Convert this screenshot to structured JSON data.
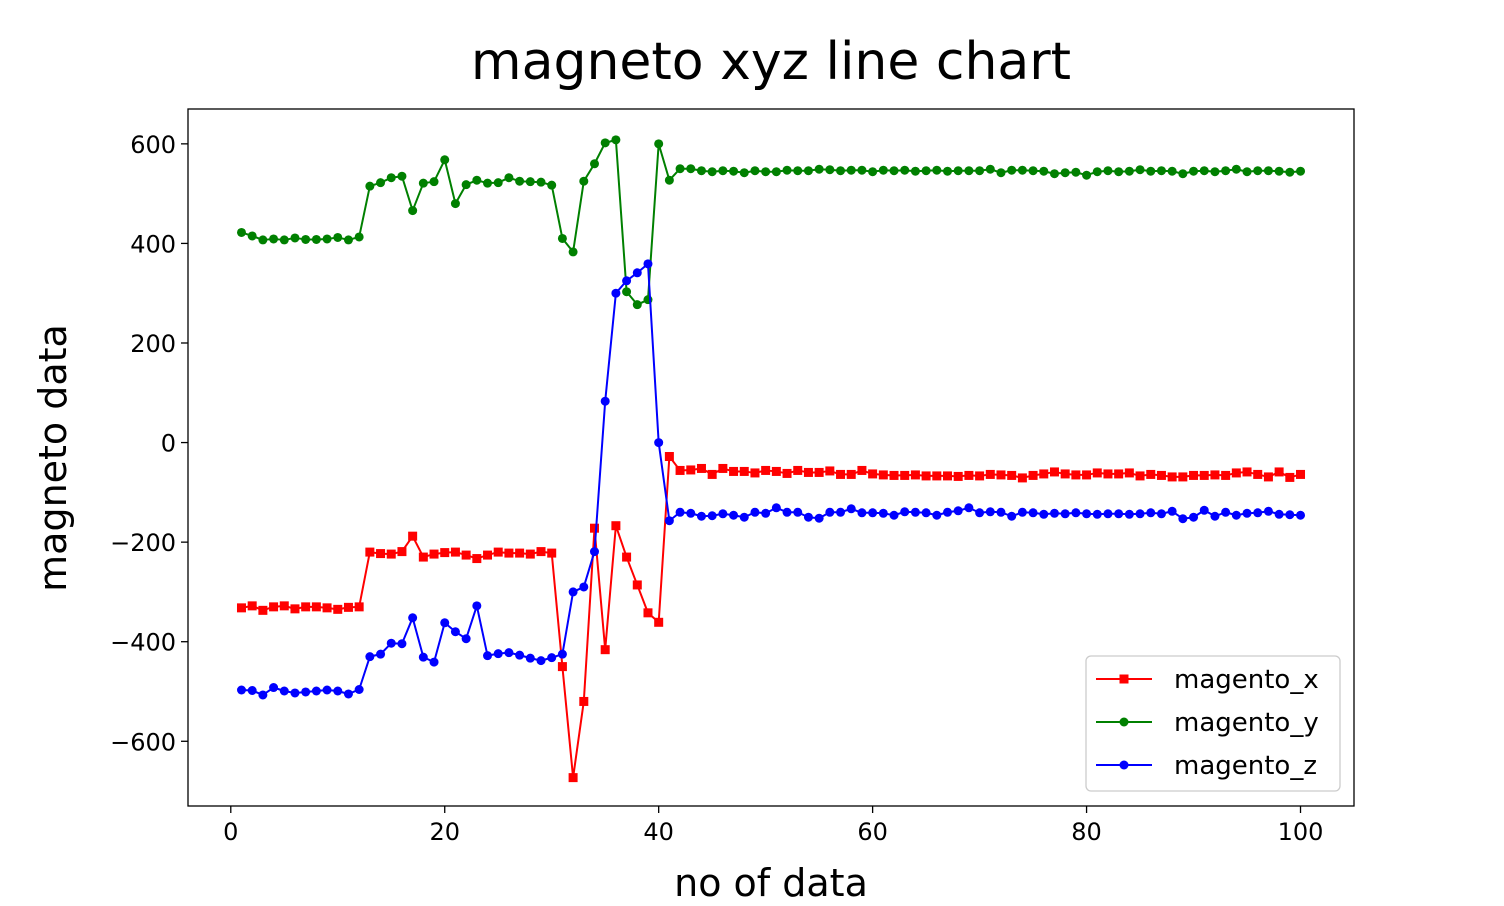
{
  "chart_data": {
    "type": "line",
    "title": "magneto xyz line chart",
    "xlabel": "no of data",
    "ylabel": "magneto data",
    "xlim": [
      -4,
      105
    ],
    "ylim": [
      -730,
      670
    ],
    "xticks": [
      0,
      20,
      40,
      60,
      80,
      100
    ],
    "xtick_labels": [
      "0",
      "20",
      "40",
      "60",
      "80",
      "100"
    ],
    "yticks": [
      -600,
      -400,
      -200,
      0,
      200,
      400,
      600
    ],
    "ytick_labels": [
      "−600",
      "−400",
      "−200",
      "0",
      "200",
      "400",
      "600"
    ],
    "grid": false,
    "legend_position": "lower-right",
    "x": [
      1,
      2,
      3,
      4,
      5,
      6,
      7,
      8,
      9,
      10,
      11,
      12,
      13,
      14,
      15,
      16,
      17,
      18,
      19,
      20,
      21,
      22,
      23,
      24,
      25,
      26,
      27,
      28,
      29,
      30,
      31,
      32,
      33,
      34,
      35,
      36,
      37,
      38,
      39,
      40,
      41,
      42,
      43,
      44,
      45,
      46,
      47,
      48,
      49,
      50,
      51,
      52,
      53,
      54,
      55,
      56,
      57,
      58,
      59,
      60,
      61,
      62,
      63,
      64,
      65,
      66,
      67,
      68,
      69,
      70,
      71,
      72,
      73,
      74,
      75,
      76,
      77,
      78,
      79,
      80,
      81,
      82,
      83,
      84,
      85,
      86,
      87,
      88,
      89,
      90,
      91,
      92,
      93,
      94,
      95,
      96,
      97,
      98,
      99,
      100
    ],
    "series": [
      {
        "name": "magento_x",
        "color": "#ff0000",
        "marker": "square",
        "values": [
          -332,
          -328,
          -337,
          -330,
          -328,
          -334,
          -330,
          -330,
          -332,
          -335,
          -331,
          -330,
          -220,
          -223,
          -224,
          -219,
          -188,
          -230,
          -224,
          -221,
          -220,
          -226,
          -233,
          -226,
          -220,
          -222,
          -222,
          -224,
          -219,
          -222,
          -450,
          -673,
          -520,
          -172,
          -416,
          -167,
          -230,
          -286,
          -342,
          -361,
          -28,
          -56,
          -55,
          -52,
          -64,
          -52,
          -58,
          -58,
          -61,
          -56,
          -58,
          -62,
          -56,
          -60,
          -60,
          -57,
          -64,
          -64,
          -56,
          -63,
          -65,
          -66,
          -66,
          -65,
          -67,
          -67,
          -67,
          -68,
          -66,
          -67,
          -64,
          -65,
          -66,
          -71,
          -66,
          -63,
          -59,
          -63,
          -65,
          -65,
          -61,
          -63,
          -63,
          -61,
          -67,
          -64,
          -66,
          -69,
          -69,
          -66,
          -66,
          -65,
          -66,
          -61,
          -59,
          -64,
          -69,
          -59,
          -70,
          -64
        ]
      },
      {
        "name": "magento_y",
        "color": "#008000",
        "marker": "circle",
        "values": [
          422,
          415,
          407,
          409,
          407,
          411,
          408,
          408,
          409,
          412,
          407,
          413,
          515,
          522,
          532,
          535,
          466,
          521,
          524,
          568,
          480,
          518,
          527,
          521,
          522,
          532,
          525,
          524,
          523,
          517,
          410,
          383,
          525,
          560,
          602,
          608,
          303,
          277,
          287,
          600,
          527,
          550,
          550,
          546,
          544,
          546,
          545,
          542,
          546,
          544,
          544,
          547,
          546,
          546,
          549,
          548,
          546,
          547,
          547,
          544,
          547,
          546,
          547,
          545,
          546,
          547,
          545,
          546,
          546,
          546,
          549,
          542,
          547,
          547,
          546,
          545,
          540,
          542,
          543,
          537,
          544,
          546,
          544,
          545,
          548,
          545,
          546,
          545,
          540,
          545,
          546,
          544,
          546,
          549,
          544,
          546,
          546,
          545,
          543,
          545
        ]
      },
      {
        "name": "magento_z",
        "color": "#0000ff",
        "marker": "circle",
        "values": [
          -497,
          -498,
          -507,
          -492,
          -499,
          -503,
          -501,
          -499,
          -497,
          -499,
          -505,
          -496,
          -430,
          -425,
          -403,
          -404,
          -352,
          -431,
          -441,
          -362,
          -380,
          -394,
          -328,
          -428,
          -424,
          -422,
          -427,
          -433,
          -438,
          -432,
          -425,
          -300,
          -290,
          -219,
          83,
          300,
          325,
          341,
          359,
          0,
          -157,
          -140,
          -142,
          -148,
          -147,
          -143,
          -146,
          -150,
          -140,
          -142,
          -131,
          -140,
          -140,
          -150,
          -152,
          -140,
          -140,
          -133,
          -141,
          -141,
          -142,
          -146,
          -139,
          -140,
          -141,
          -146,
          -140,
          -137,
          -131,
          -141,
          -139,
          -140,
          -148,
          -140,
          -141,
          -144,
          -142,
          -143,
          -141,
          -143,
          -144,
          -143,
          -143,
          -144,
          -143,
          -141,
          -143,
          -138,
          -153,
          -150,
          -136,
          -148,
          -140,
          -146,
          -142,
          -141,
          -138,
          -144,
          -145,
          -146
        ]
      }
    ]
  }
}
